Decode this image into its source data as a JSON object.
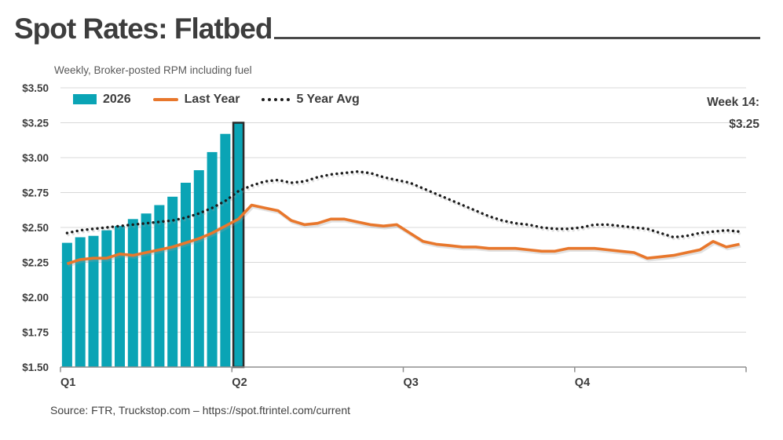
{
  "header": {
    "title": "Spot Rates: Flatbed"
  },
  "chart": {
    "subtitle": "Weekly, Broker-posted RPM including fuel",
    "legend": [
      {
        "label": "2026",
        "type": "bar",
        "color": "#0aa4b5"
      },
      {
        "label": "Last Year",
        "type": "line",
        "color": "#e8772c"
      },
      {
        "label": "5 Year Avg",
        "type": "dotted",
        "color": "#1c1c1c"
      }
    ],
    "annotation": {
      "line1": "Week 14:",
      "line2": "$3.25"
    }
  },
  "footer": {
    "source": "Source: FTR, Truckstop.com – https://spot.ftrintel.com/current"
  },
  "chart_data": {
    "type": "combo bar+line",
    "title": "Spot Rates: Flatbed",
    "subtitle": "Weekly, Broker-posted RPM including fuel",
    "ylim": [
      1.5,
      3.5
    ],
    "y_tick_labels": [
      "$3.50",
      "$3.25",
      "$3.00",
      "$2.75",
      "$2.50",
      "$2.25",
      "$2.00",
      "$1.75",
      "$1.50"
    ],
    "grid": {
      "horizontal": true,
      "color": "#d8d8d8"
    },
    "axis_color": "#8f8f8f",
    "x_axis": {
      "weeks_total": 52,
      "ticks": [
        {
          "label": "Q1",
          "week": 1
        },
        {
          "label": "Q2",
          "week": 14
        },
        {
          "label": "Q3",
          "week": 27
        },
        {
          "label": "Q4",
          "week": 40
        }
      ]
    },
    "bar_series": {
      "name": "2026",
      "color": "#0aa4b5",
      "start_week": 1,
      "values": [
        2.39,
        2.43,
        2.44,
        2.48,
        2.51,
        2.56,
        2.6,
        2.66,
        2.72,
        2.82,
        2.91,
        3.04,
        3.17,
        3.25
      ],
      "highlight": {
        "index": 13,
        "week": 14,
        "value": 3.25,
        "border_color": "#2b2b2b"
      }
    },
    "line_series": [
      {
        "name": "Last Year",
        "color": "#e8772c",
        "style": "solid",
        "start_week": 1,
        "values": [
          2.24,
          2.27,
          2.28,
          2.28,
          2.31,
          2.3,
          2.32,
          2.34,
          2.36,
          2.39,
          2.42,
          2.46,
          2.51,
          2.56,
          2.66,
          2.64,
          2.62,
          2.55,
          2.52,
          2.53,
          2.56,
          2.56,
          2.54,
          2.52,
          2.51,
          2.52,
          2.46,
          2.4,
          2.38,
          2.37,
          2.36,
          2.36,
          2.35,
          2.35,
          2.35,
          2.34,
          2.33,
          2.33,
          2.35,
          2.35,
          2.35,
          2.34,
          2.33,
          2.32,
          2.28,
          2.29,
          2.3,
          2.32,
          2.34,
          2.4,
          2.36,
          2.38
        ]
      },
      {
        "name": "5 Year Avg",
        "color": "#1c1c1c",
        "style": "dotted",
        "start_week": 1,
        "values": [
          2.46,
          2.48,
          2.49,
          2.5,
          2.51,
          2.52,
          2.53,
          2.54,
          2.55,
          2.57,
          2.6,
          2.64,
          2.69,
          2.76,
          2.8,
          2.83,
          2.84,
          2.82,
          2.83,
          2.86,
          2.88,
          2.89,
          2.9,
          2.89,
          2.86,
          2.84,
          2.82,
          2.78,
          2.74,
          2.7,
          2.66,
          2.62,
          2.58,
          2.55,
          2.53,
          2.52,
          2.5,
          2.49,
          2.49,
          2.5,
          2.52,
          2.52,
          2.51,
          2.5,
          2.49,
          2.46,
          2.43,
          2.44,
          2.46,
          2.47,
          2.48,
          2.47
        ]
      }
    ],
    "annotation": {
      "text": "Week 14: $3.25",
      "position": "top-right"
    }
  }
}
